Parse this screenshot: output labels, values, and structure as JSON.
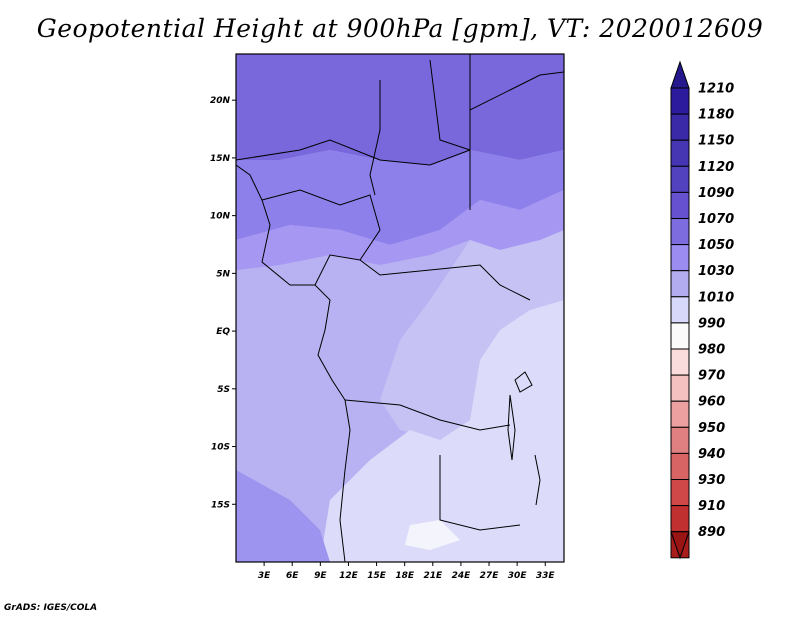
{
  "title": "Geopotential Height at 900hPa [gpm], VT: 2020012609",
  "footer": "GrADS: IGES/COLA",
  "map": {
    "variable": "Geopotential Height",
    "level": "900hPa",
    "units": "gpm",
    "valid_time": "2020012609",
    "lon_range": [
      0,
      35
    ],
    "lat_range": [
      -20,
      24
    ],
    "lon_ticks": [
      {
        "value": 3,
        "label": "3E"
      },
      {
        "value": 6,
        "label": "6E"
      },
      {
        "value": 9,
        "label": "9E"
      },
      {
        "value": 12,
        "label": "12E"
      },
      {
        "value": 15,
        "label": "15E"
      },
      {
        "value": 18,
        "label": "18E"
      },
      {
        "value": 21,
        "label": "21E"
      },
      {
        "value": 24,
        "label": "24E"
      },
      {
        "value": 27,
        "label": "27E"
      },
      {
        "value": 30,
        "label": "30E"
      },
      {
        "value": 33,
        "label": "33E"
      }
    ],
    "lat_ticks": [
      {
        "value": 20,
        "label": "20N"
      },
      {
        "value": 15,
        "label": "15N"
      },
      {
        "value": 10,
        "label": "10N"
      },
      {
        "value": 5,
        "label": "5N"
      },
      {
        "value": 0,
        "label": "EQ"
      },
      {
        "value": -5,
        "label": "5S"
      },
      {
        "value": -10,
        "label": "10S"
      },
      {
        "value": -15,
        "label": "15S"
      }
    ]
  },
  "colorbar": {
    "levels": [
      {
        "label": "1210",
        "color": "#2d1b9e"
      },
      {
        "label": "1180",
        "color": "#3a2aa8"
      },
      {
        "label": "1150",
        "color": "#4636b4"
      },
      {
        "label": "1120",
        "color": "#5242be"
      },
      {
        "label": "1090",
        "color": "#6652d0"
      },
      {
        "label": "1070",
        "color": "#7c6ce0"
      },
      {
        "label": "1050",
        "color": "#9a8cf0"
      },
      {
        "label": "1030",
        "color": "#b4acf0"
      },
      {
        "label": "1010",
        "color": "#d8d8fa"
      },
      {
        "label": "990",
        "color": "#fafafa"
      },
      {
        "label": "980",
        "color": "#fadcdc"
      },
      {
        "label": "970",
        "color": "#f4c0c0"
      },
      {
        "label": "960",
        "color": "#eca0a0"
      },
      {
        "label": "950",
        "color": "#e08080"
      },
      {
        "label": "940",
        "color": "#d86464"
      },
      {
        "label": "930",
        "color": "#d04848"
      },
      {
        "label": "910",
        "color": "#c03030"
      },
      {
        "label": "890",
        "color": "#a81c1c"
      }
    ],
    "top_color": "#24188c",
    "bottom_color": "#9a1414"
  },
  "fields": {
    "north_band": "#7868dc",
    "band_1090": "#8e80ea",
    "band_1070": "#a698f2",
    "band_1050": "#b6b0f0",
    "band_1030": "#c6c2f4",
    "band_1010": "#dcdcfa",
    "band_990": "#f4f4fc",
    "southwest_band": "#9c94ee",
    "coast": "#000000"
  }
}
